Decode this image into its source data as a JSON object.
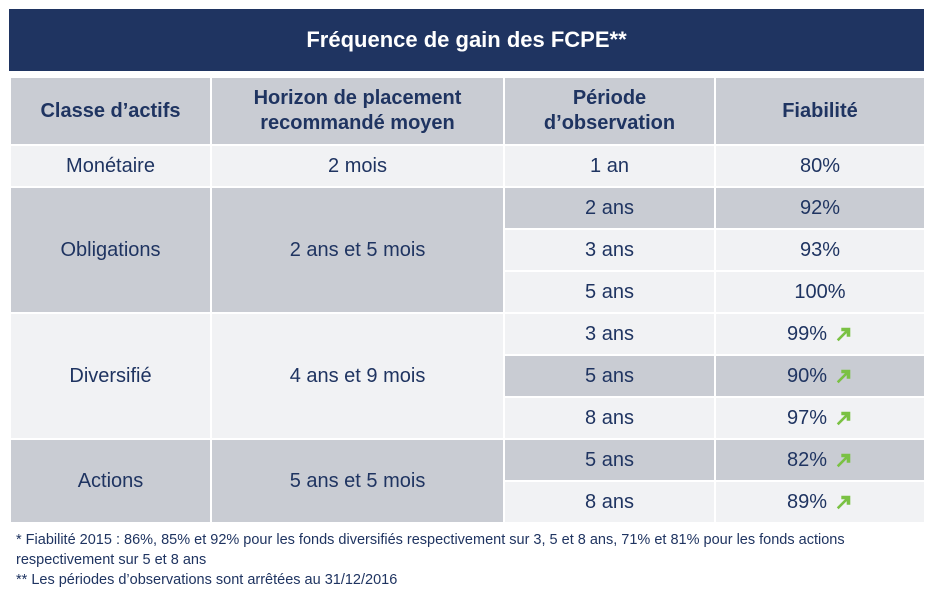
{
  "title": "Fréquence de gain des FCPE**",
  "headers": [
    "Classe d’actifs",
    "Horizon de placement recommandé moyen",
    "Période d’observation",
    "Fiabilité"
  ],
  "rows": [
    {
      "classe": "Monétaire",
      "horizon": "2 mois",
      "periodes": [
        {
          "periode": "1 an",
          "fiabilite": "80%",
          "arrow": false
        }
      ]
    },
    {
      "classe": "Obligations",
      "horizon": "2 ans et 5 mois",
      "periodes": [
        {
          "periode": "2 ans",
          "fiabilite": "92%",
          "arrow": false
        },
        {
          "periode": "3 ans",
          "fiabilite": "93%",
          "arrow": false
        },
        {
          "periode": "5 ans",
          "fiabilite": "100%",
          "arrow": false
        }
      ]
    },
    {
      "classe": "Diversifié",
      "horizon": "4 ans et 9 mois",
      "periodes": [
        {
          "periode": "3 ans",
          "fiabilite": "99%",
          "arrow": true
        },
        {
          "periode": "5 ans",
          "fiabilite": "90%",
          "arrow": true
        },
        {
          "periode": "8 ans",
          "fiabilite": "97%",
          "arrow": true
        }
      ]
    },
    {
      "classe": "Actions",
      "horizon": "5 ans et 5 mois",
      "periodes": [
        {
          "periode": "5 ans",
          "fiabilite": "82%",
          "arrow": true
        },
        {
          "periode": "8 ans",
          "fiabilite": "89%",
          "arrow": true
        }
      ]
    }
  ],
  "notes": [
    "* Fiabilité 2015 : 86%, 85% et 92% pour les fonds diversifiés respectivement sur 3, 5 et 8 ans, 71% et 81% pour les fonds actions respectivement sur 5 et 8 ans",
    "** Les périodes d’observations sont arrêtées au 31/12/2016"
  ],
  "colors": {
    "header": "#1f3461",
    "accent_arrow": "#7ac143",
    "cell_gray": "#c9ccd3",
    "cell_light": "#f1f2f4"
  },
  "icons": {
    "trend": "arrow-up-right-icon"
  }
}
